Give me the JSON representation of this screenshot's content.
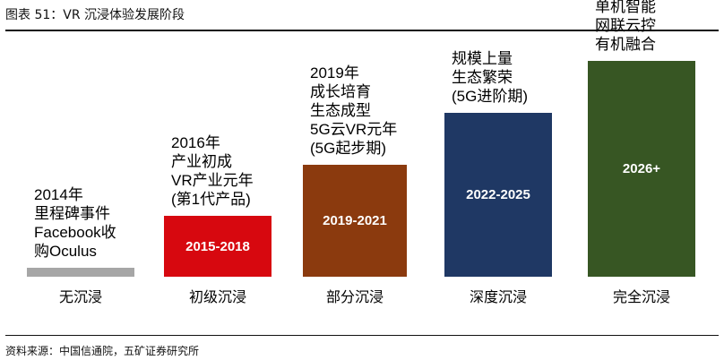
{
  "header": {
    "title": "图表 51：VR 沉浸体验发展阶段"
  },
  "footer": {
    "source": "资料来源：中国信通院，五矿证券研究所"
  },
  "chart_data": {
    "type": "bar",
    "title": "VR 沉浸体验发展阶段",
    "categories": [
      "无沉浸",
      "初级沉浸",
      "部分沉浸",
      "深度沉浸",
      "完全沉浸"
    ],
    "values": [
      1,
      2,
      3,
      4,
      5
    ],
    "period_labels": [
      "",
      "2015-2018",
      "2019-2021",
      "2022-2025",
      "2026+"
    ],
    "descriptions": [
      [
        "2014年",
        "里程碑事件",
        "Facebook收",
        "购Oculus"
      ],
      [
        "2016年",
        "产业初成",
        "VR产业元年",
        "(第1代产品)"
      ],
      [
        "2019年",
        "成长培育",
        "生态成型",
        "5G云VR元年",
        "(5G起步期)"
      ],
      [
        "规模上量",
        "生态繁荣",
        "(5G进阶期)"
      ],
      [
        "单机智能",
        "网联云控",
        "有机融合"
      ]
    ],
    "colors": [
      "#a6a6a6",
      "#d7080f",
      "#8b3a0e",
      "#1f3864",
      "#375623"
    ]
  }
}
